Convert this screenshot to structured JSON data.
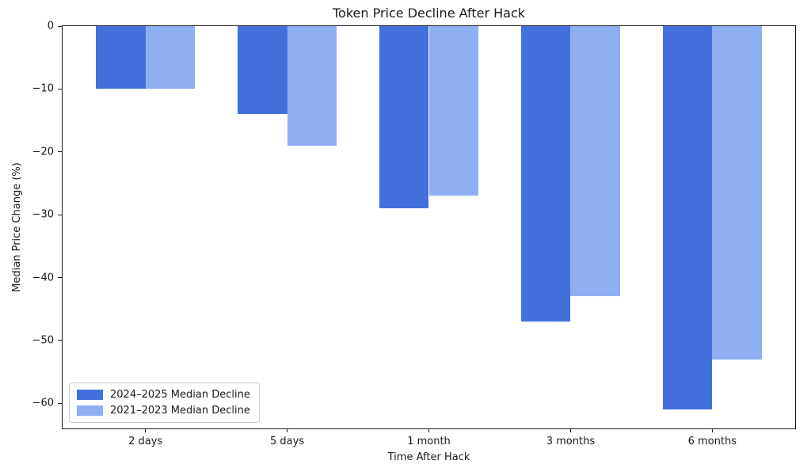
{
  "chart_data": {
    "type": "bar",
    "title": "Token Price Decline After Hack",
    "xlabel": "Time After Hack",
    "ylabel": "Median Price Change (%)",
    "categories": [
      "2 days",
      "5 days",
      "1 month",
      "3 months",
      "6 months"
    ],
    "series": [
      {
        "name": "2024–2025 Median Decline",
        "color": "#4470DC",
        "values": [
          -10,
          -14,
          -29,
          -47,
          -61
        ]
      },
      {
        "name": "2021–2023 Median Decline",
        "color": "#8FAFF2",
        "values": [
          -10,
          -19,
          -27,
          -43,
          -53
        ]
      }
    ],
    "ylim": [
      -64,
      0
    ],
    "yticks": [
      0,
      -10,
      -20,
      -30,
      -40,
      -50,
      -60
    ],
    "ytick_labels": [
      "0",
      "−10",
      "−20",
      "−30",
      "−40",
      "−50",
      "−60"
    ],
    "bar_unit_width": 0.35,
    "x_unit_min": -0.585,
    "x_unit_max": 4.585,
    "legend_position": "lower left",
    "grid": false,
    "colors": {
      "axis": "#1a1a1a",
      "background": "#ffffff"
    }
  }
}
